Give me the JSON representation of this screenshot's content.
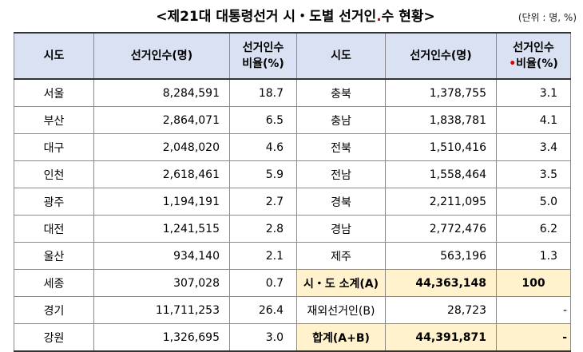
{
  "header": {
    "title_before": "<제21대 대통령선거 시・도별 선거인",
    "title_after": "수 현황>",
    "title_dot": ".",
    "unit": "(단위 : 명, %)"
  },
  "columns": {
    "region": "시도",
    "voters": "선거인수(명)",
    "ratio_line1": "선거인수",
    "ratio_line2": "비율(%)",
    "right_ratio_dot": "•"
  },
  "rows": [
    {
      "l_region": "서울",
      "l_voters": "8,284,591",
      "l_ratio": "18.7",
      "r_region": "충북",
      "r_voters": "1,378,755",
      "r_ratio": "3.1"
    },
    {
      "l_region": "부산",
      "l_voters": "2,864,071",
      "l_ratio": "6.5",
      "r_region": "충남",
      "r_voters": "1,838,781",
      "r_ratio": "4.1"
    },
    {
      "l_region": "대구",
      "l_voters": "2,048,020",
      "l_ratio": "4.6",
      "r_region": "전북",
      "r_voters": "1,510,416",
      "r_ratio": "3.4"
    },
    {
      "l_region": "인천",
      "l_voters": "2,618,461",
      "l_ratio": "5.9",
      "r_region": "전남",
      "r_voters": "1,558,464",
      "r_ratio": "3.5"
    },
    {
      "l_region": "광주",
      "l_voters": "1,194,191",
      "l_ratio": "2.7",
      "r_region": "경북",
      "r_voters": "2,211,095",
      "r_ratio": "5.0"
    },
    {
      "l_region": "대전",
      "l_voters": "1,241,515",
      "l_ratio": "2.8",
      "r_region": "경남",
      "r_voters": "2,772,476",
      "r_ratio": "6.2"
    },
    {
      "l_region": "울산",
      "l_voters": "934,140",
      "l_ratio": "2.1",
      "r_region": "제주",
      "r_voters": "563,196",
      "r_ratio": "1.3"
    },
    {
      "l_region": "세종",
      "l_voters": "307,028",
      "l_ratio": "0.7",
      "r_region": "시・도 소계(A)",
      "r_voters": "44,363,148",
      "r_ratio": "100"
    },
    {
      "l_region": "경기",
      "l_voters": "11,711,253",
      "l_ratio": "26.4",
      "r_region": "재외선거인(B)",
      "r_voters": "28,723",
      "r_ratio": "-"
    },
    {
      "l_region": "강원",
      "l_voters": "1,326,695",
      "l_ratio": "3.0",
      "r_region": "합계(A+B)",
      "r_voters": "44,391,871",
      "r_ratio": "-"
    }
  ],
  "colors": {
    "header_bg": "#d9e1f2",
    "highlight_bg": "#fff2cc",
    "dot": "#e00000"
  }
}
